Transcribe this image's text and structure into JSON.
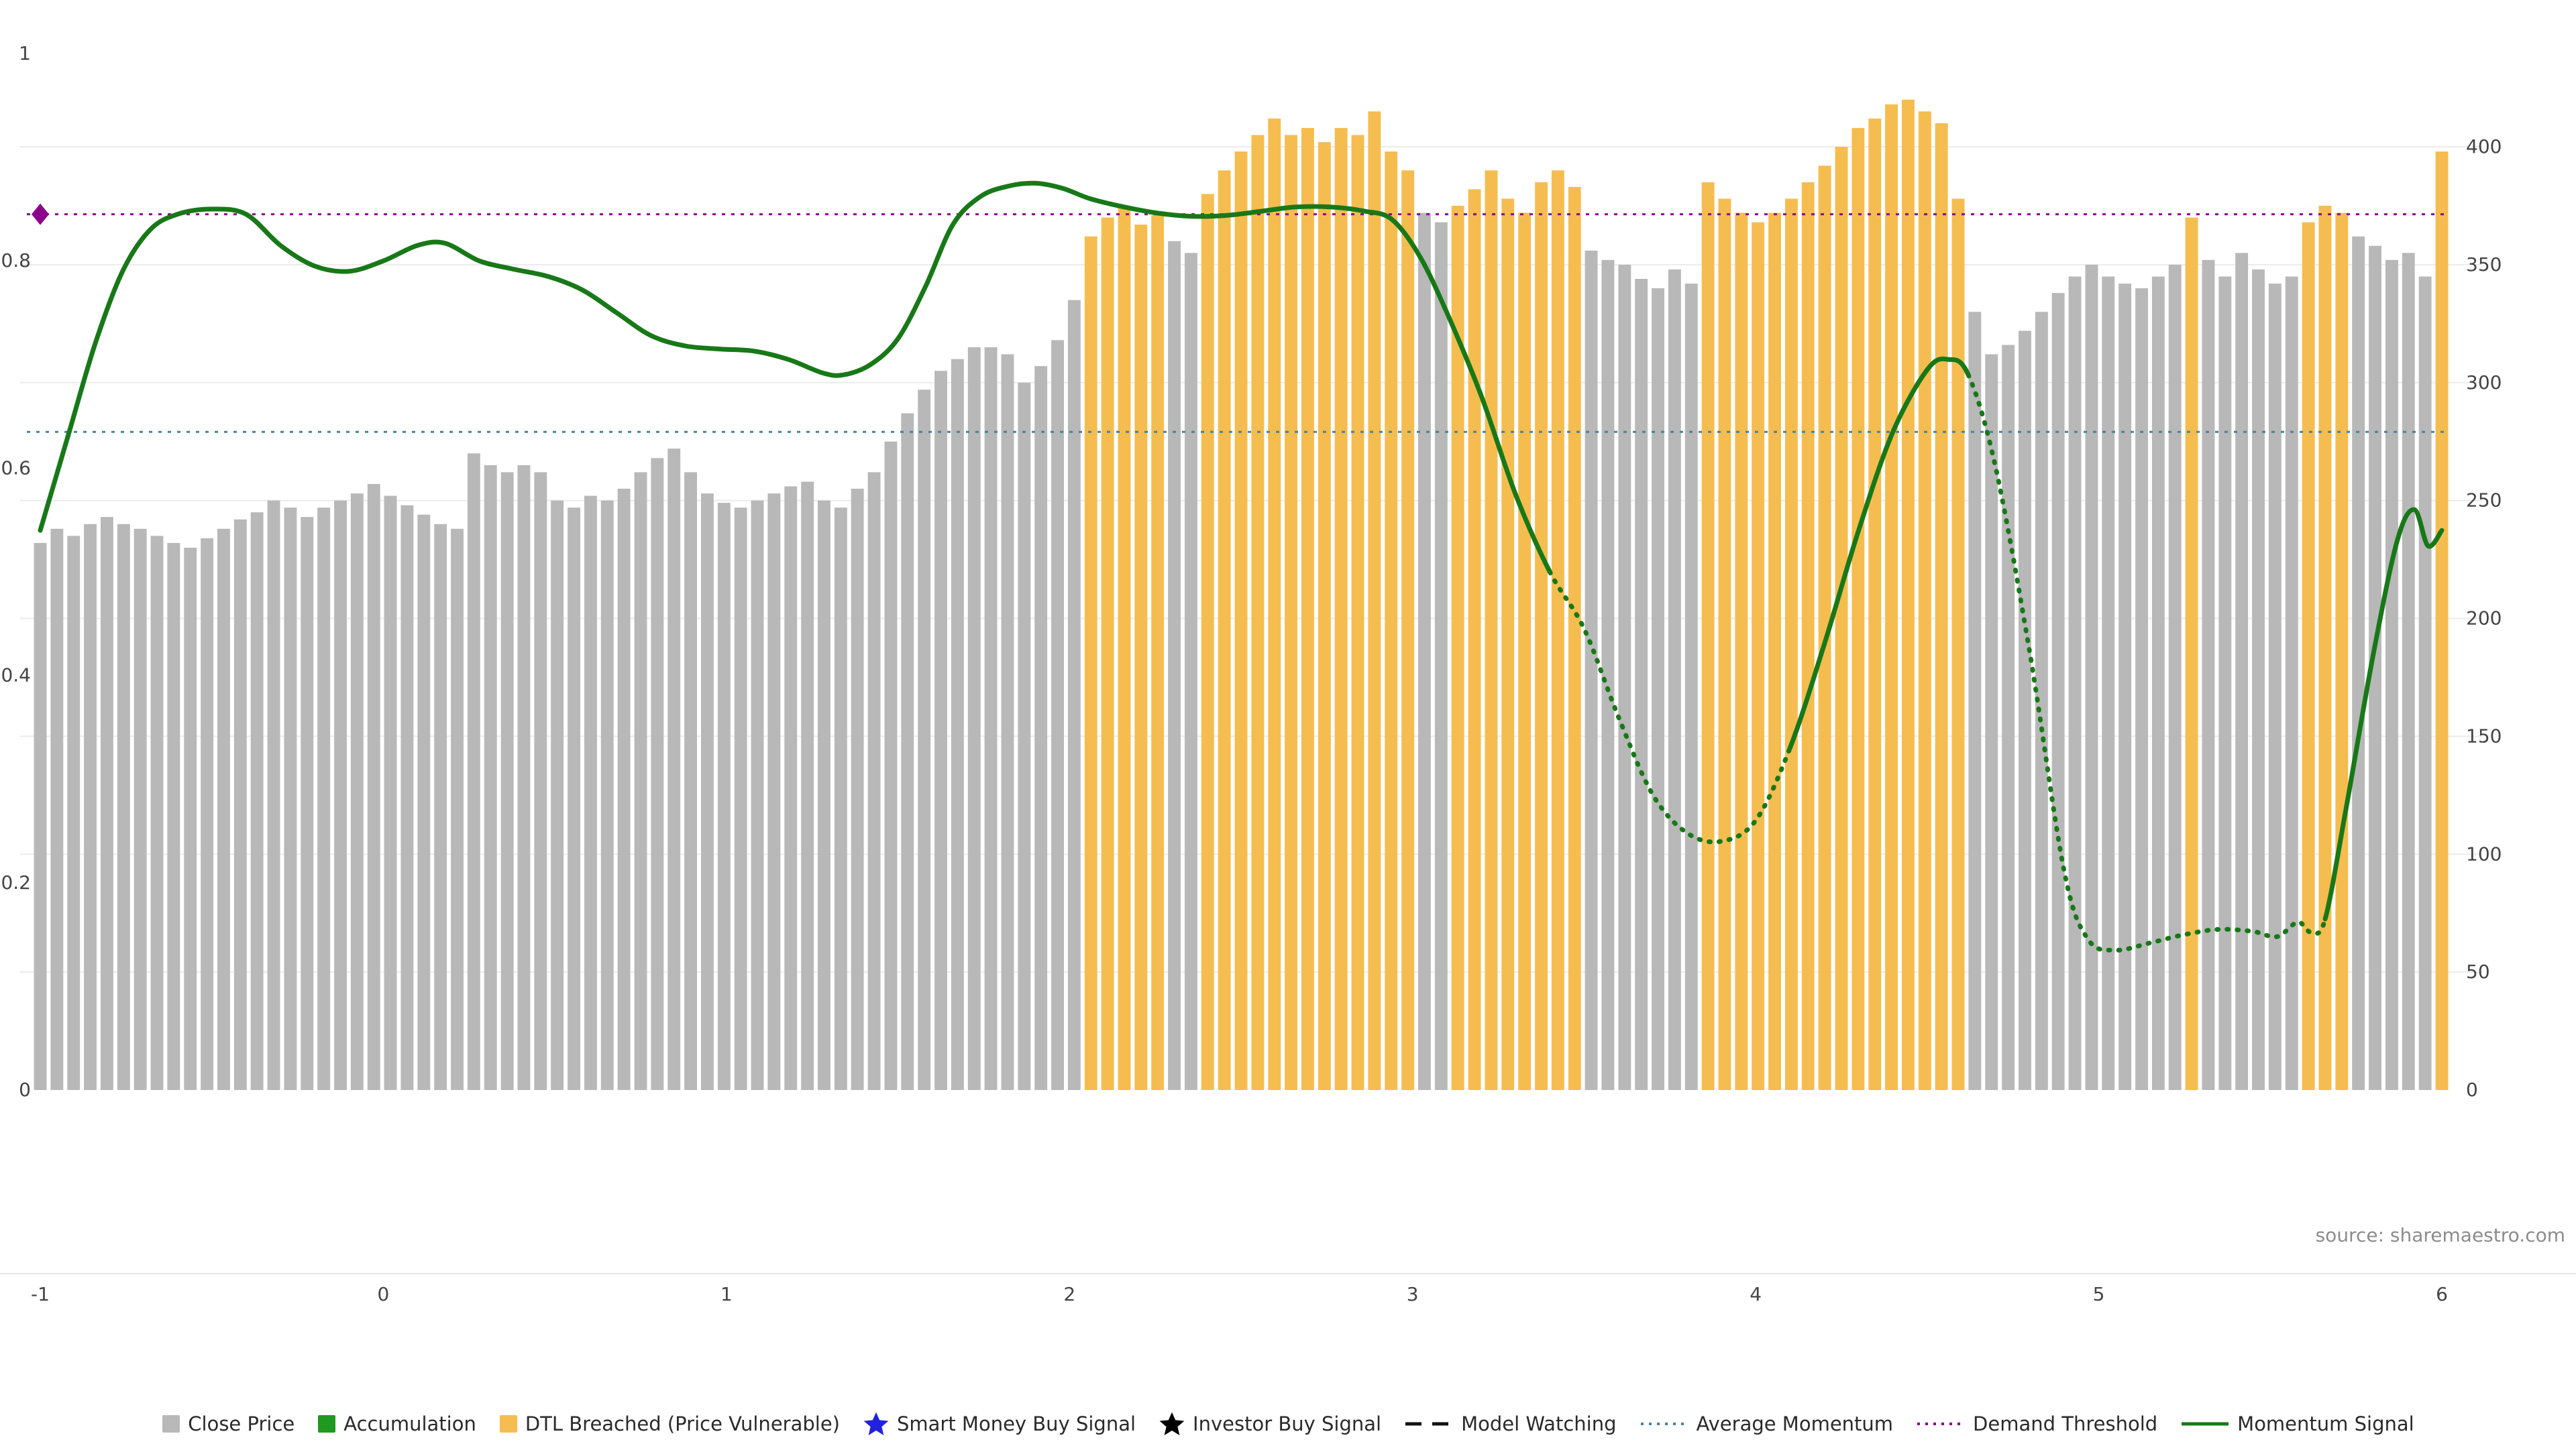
{
  "source_note": "source: sharemaestro.com",
  "colors": {
    "close_price": "#b8b8b8",
    "accumulation": "#1f9a1f",
    "dtl_breached": "#f5bd4f",
    "momentum": "#187818",
    "avg_momentum": "#46839e",
    "demand_threshold": "#8b008b",
    "smart_money_signal": "#2222dd",
    "investor_signal": "#000000",
    "model_watching": "#111111",
    "grid": "#ebebeb",
    "axis_line": "#e6e6e6",
    "axis_text": "#444444",
    "source_text": "#8c8c8c"
  },
  "legend": {
    "items": [
      {
        "label": "Close Price",
        "icon": "square",
        "color_key": "close_price"
      },
      {
        "label": "Accumulation",
        "icon": "square",
        "color_key": "accumulation"
      },
      {
        "label": "DTL Breached (Price Vulnerable)",
        "icon": "square",
        "color_key": "dtl_breached"
      },
      {
        "label": "Smart Money Buy Signal",
        "icon": "star",
        "color_key": "smart_money_signal"
      },
      {
        "label": "Investor Buy Signal",
        "icon": "star",
        "color_key": "investor_signal"
      },
      {
        "label": "Model Watching",
        "icon": "dashed-line",
        "color_key": "model_watching"
      },
      {
        "label": "Average Momentum",
        "icon": "dotted-line",
        "color_key": "avg_momentum"
      },
      {
        "label": "Demand Threshold",
        "icon": "dotted-line",
        "color_key": "demand_threshold"
      },
      {
        "label": "Momentum Signal",
        "icon": "solid-line",
        "color_key": "momentum"
      }
    ]
  },
  "chart_data": {
    "type": "bar+line",
    "title": "",
    "xlabel": "",
    "ylabel": "",
    "x_range": [
      -1,
      6
    ],
    "x_ticks": [
      -1,
      0,
      1,
      2,
      3,
      4,
      5,
      6
    ],
    "left_axis": {
      "range": [
        0,
        1
      ],
      "ticks": [
        0,
        0.2,
        0.4,
        0.6,
        0.8,
        1
      ]
    },
    "right_axis": {
      "range": [
        0,
        400
      ],
      "ticks": [
        0,
        50,
        100,
        150,
        200,
        250,
        300,
        350,
        400
      ]
    },
    "grid": "horizontal-light",
    "legend_position": "bottom-center",
    "bars": {
      "name": "Close Price",
      "axis": "right",
      "x_start": -1,
      "x_end": 6,
      "x_step": 0.0486111,
      "values": [
        232,
        238,
        235,
        240,
        243,
        240,
        238,
        235,
        232,
        230,
        234,
        238,
        242,
        245,
        250,
        247,
        243,
        247,
        250,
        253,
        257,
        252,
        248,
        244,
        240,
        238,
        270,
        265,
        262,
        265,
        262,
        250,
        247,
        252,
        250,
        255,
        262,
        268,
        272,
        262,
        253,
        249,
        247,
        250,
        253,
        256,
        258,
        250,
        247,
        255,
        262,
        275,
        287,
        297,
        305,
        310,
        315,
        315,
        312,
        300,
        307,
        318,
        335,
        362,
        370,
        374,
        367,
        371,
        360,
        355,
        380,
        390,
        398,
        405,
        412,
        405,
        408,
        402,
        408,
        405,
        415,
        398,
        390,
        372,
        368,
        375,
        382,
        390,
        378,
        372,
        385,
        390,
        383,
        356,
        352,
        350,
        344,
        340,
        348,
        342,
        385,
        378,
        372,
        368,
        372,
        378,
        385,
        392,
        400,
        408,
        412,
        418,
        420,
        415,
        410,
        378,
        330,
        312,
        316,
        322,
        330,
        338,
        345,
        350,
        345,
        342,
        340,
        345,
        350,
        370,
        352,
        345,
        355,
        348,
        342,
        345,
        368,
        375,
        372,
        362,
        358,
        352,
        355,
        345,
        398
      ],
      "vulnerable_name": "DTL Breached (Price Vulnerable)",
      "vulnerable_index_ranges": [
        [
          63,
          67
        ],
        [
          70,
          82
        ],
        [
          85,
          92
        ],
        [
          100,
          115
        ],
        [
          129,
          129
        ],
        [
          136,
          138
        ],
        [
          144,
          144
        ]
      ]
    },
    "momentum_line": {
      "name": "Momentum Signal",
      "axis": "left",
      "points": [
        [
          -1.0,
          0.54
        ],
        [
          -0.92,
          0.63
        ],
        [
          -0.84,
          0.72
        ],
        [
          -0.76,
          0.79
        ],
        [
          -0.68,
          0.83
        ],
        [
          -0.6,
          0.845
        ],
        [
          -0.5,
          0.85
        ],
        [
          -0.4,
          0.845
        ],
        [
          -0.3,
          0.815
        ],
        [
          -0.2,
          0.795
        ],
        [
          -0.1,
          0.79
        ],
        [
          0.0,
          0.8
        ],
        [
          0.1,
          0.815
        ],
        [
          0.18,
          0.817
        ],
        [
          0.28,
          0.8
        ],
        [
          0.38,
          0.792
        ],
        [
          0.48,
          0.785
        ],
        [
          0.58,
          0.772
        ],
        [
          0.68,
          0.75
        ],
        [
          0.78,
          0.728
        ],
        [
          0.88,
          0.718
        ],
        [
          0.98,
          0.715
        ],
        [
          1.08,
          0.713
        ],
        [
          1.18,
          0.705
        ],
        [
          1.28,
          0.692
        ],
        [
          1.34,
          0.69
        ],
        [
          1.42,
          0.7
        ],
        [
          1.5,
          0.725
        ],
        [
          1.58,
          0.775
        ],
        [
          1.66,
          0.835
        ],
        [
          1.74,
          0.862
        ],
        [
          1.82,
          0.872
        ],
        [
          1.9,
          0.875
        ],
        [
          1.98,
          0.87
        ],
        [
          2.06,
          0.86
        ],
        [
          2.16,
          0.852
        ],
        [
          2.26,
          0.846
        ],
        [
          2.36,
          0.843
        ],
        [
          2.46,
          0.844
        ],
        [
          2.56,
          0.848
        ],
        [
          2.66,
          0.852
        ],
        [
          2.76,
          0.852
        ],
        [
          2.86,
          0.848
        ],
        [
          2.94,
          0.84
        ],
        [
          3.02,
          0.805
        ],
        [
          3.1,
          0.75
        ],
        [
          3.2,
          0.67
        ],
        [
          3.3,
          0.575
        ],
        [
          3.4,
          0.5
        ],
        [
          3.5,
          0.445
        ],
        [
          3.6,
          0.36
        ],
        [
          3.7,
          0.285
        ],
        [
          3.8,
          0.248
        ],
        [
          3.9,
          0.24
        ],
        [
          4.0,
          0.26
        ],
        [
          4.1,
          0.33
        ],
        [
          4.2,
          0.43
        ],
        [
          4.3,
          0.54
        ],
        [
          4.4,
          0.635
        ],
        [
          4.5,
          0.695
        ],
        [
          4.56,
          0.705
        ],
        [
          4.62,
          0.69
        ],
        [
          4.7,
          0.6
        ],
        [
          4.8,
          0.42
        ],
        [
          4.9,
          0.21
        ],
        [
          4.97,
          0.145
        ],
        [
          5.05,
          0.135
        ],
        [
          5.15,
          0.142
        ],
        [
          5.25,
          0.15
        ],
        [
          5.35,
          0.155
        ],
        [
          5.45,
          0.153
        ],
        [
          5.52,
          0.148
        ],
        [
          5.58,
          0.162
        ],
        [
          5.62,
          0.152
        ],
        [
          5.66,
          0.165
        ],
        [
          5.72,
          0.27
        ],
        [
          5.8,
          0.42
        ],
        [
          5.87,
          0.53
        ],
        [
          5.92,
          0.56
        ],
        [
          5.96,
          0.525
        ],
        [
          6.0,
          0.54
        ]
      ],
      "dashed_x_ranges": [
        [
          3.45,
          4.12
        ],
        [
          4.64,
          5.66
        ]
      ]
    },
    "average_momentum_value": 0.635,
    "demand_threshold_value": 0.845,
    "demand_marker": {
      "x": -1,
      "y": 0.845
    }
  }
}
